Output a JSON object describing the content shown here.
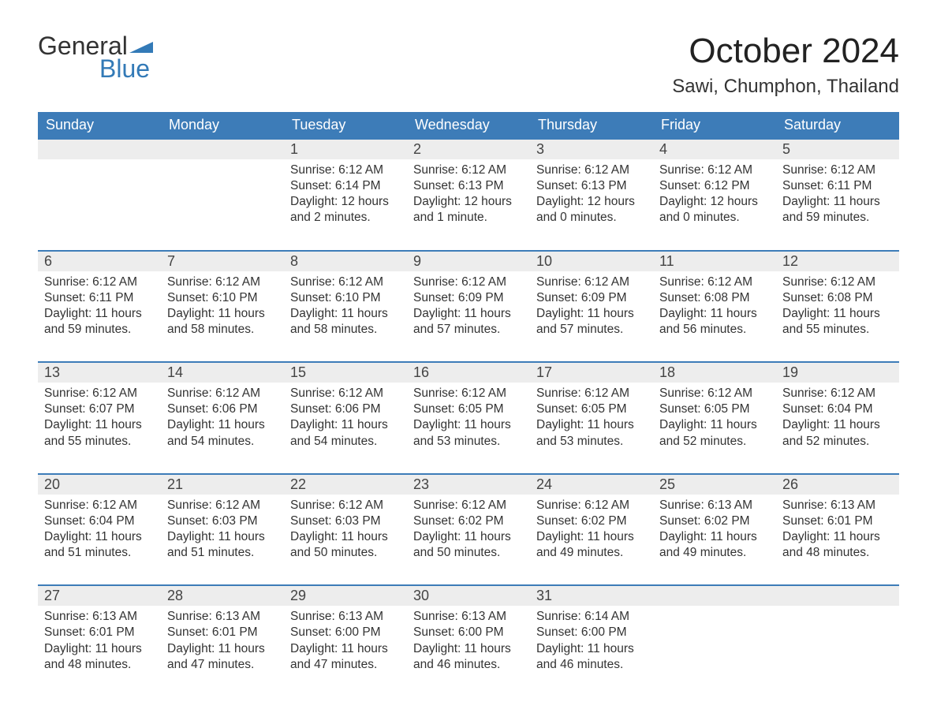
{
  "logo": {
    "word1": "General",
    "word2": "Blue",
    "accent_color": "#337ab7",
    "text_color": "#333333"
  },
  "header": {
    "title": "October 2024",
    "location": "Sawi, Chumphon, Thailand"
  },
  "calendar": {
    "header_bg": "#3d7cb8",
    "header_fg": "#ffffff",
    "daynum_bg": "#ededed",
    "row_border": "#3d7cb8",
    "body_fontsize": 15.5,
    "daynum_fontsize": 18,
    "header_fontsize": 18,
    "columns": [
      "Sunday",
      "Monday",
      "Tuesday",
      "Wednesday",
      "Thursday",
      "Friday",
      "Saturday"
    ],
    "weeks": [
      [
        null,
        null,
        {
          "n": "1",
          "sunrise": "6:12 AM",
          "sunset": "6:14 PM",
          "daylight": "12 hours and 2 minutes."
        },
        {
          "n": "2",
          "sunrise": "6:12 AM",
          "sunset": "6:13 PM",
          "daylight": "12 hours and 1 minute."
        },
        {
          "n": "3",
          "sunrise": "6:12 AM",
          "sunset": "6:13 PM",
          "daylight": "12 hours and 0 minutes."
        },
        {
          "n": "4",
          "sunrise": "6:12 AM",
          "sunset": "6:12 PM",
          "daylight": "12 hours and 0 minutes."
        },
        {
          "n": "5",
          "sunrise": "6:12 AM",
          "sunset": "6:11 PM",
          "daylight": "11 hours and 59 minutes."
        }
      ],
      [
        {
          "n": "6",
          "sunrise": "6:12 AM",
          "sunset": "6:11 PM",
          "daylight": "11 hours and 59 minutes."
        },
        {
          "n": "7",
          "sunrise": "6:12 AM",
          "sunset": "6:10 PM",
          "daylight": "11 hours and 58 minutes."
        },
        {
          "n": "8",
          "sunrise": "6:12 AM",
          "sunset": "6:10 PM",
          "daylight": "11 hours and 58 minutes."
        },
        {
          "n": "9",
          "sunrise": "6:12 AM",
          "sunset": "6:09 PM",
          "daylight": "11 hours and 57 minutes."
        },
        {
          "n": "10",
          "sunrise": "6:12 AM",
          "sunset": "6:09 PM",
          "daylight": "11 hours and 57 minutes."
        },
        {
          "n": "11",
          "sunrise": "6:12 AM",
          "sunset": "6:08 PM",
          "daylight": "11 hours and 56 minutes."
        },
        {
          "n": "12",
          "sunrise": "6:12 AM",
          "sunset": "6:08 PM",
          "daylight": "11 hours and 55 minutes."
        }
      ],
      [
        {
          "n": "13",
          "sunrise": "6:12 AM",
          "sunset": "6:07 PM",
          "daylight": "11 hours and 55 minutes."
        },
        {
          "n": "14",
          "sunrise": "6:12 AM",
          "sunset": "6:06 PM",
          "daylight": "11 hours and 54 minutes."
        },
        {
          "n": "15",
          "sunrise": "6:12 AM",
          "sunset": "6:06 PM",
          "daylight": "11 hours and 54 minutes."
        },
        {
          "n": "16",
          "sunrise": "6:12 AM",
          "sunset": "6:05 PM",
          "daylight": "11 hours and 53 minutes."
        },
        {
          "n": "17",
          "sunrise": "6:12 AM",
          "sunset": "6:05 PM",
          "daylight": "11 hours and 53 minutes."
        },
        {
          "n": "18",
          "sunrise": "6:12 AM",
          "sunset": "6:05 PM",
          "daylight": "11 hours and 52 minutes."
        },
        {
          "n": "19",
          "sunrise": "6:12 AM",
          "sunset": "6:04 PM",
          "daylight": "11 hours and 52 minutes."
        }
      ],
      [
        {
          "n": "20",
          "sunrise": "6:12 AM",
          "sunset": "6:04 PM",
          "daylight": "11 hours and 51 minutes."
        },
        {
          "n": "21",
          "sunrise": "6:12 AM",
          "sunset": "6:03 PM",
          "daylight": "11 hours and 51 minutes."
        },
        {
          "n": "22",
          "sunrise": "6:12 AM",
          "sunset": "6:03 PM",
          "daylight": "11 hours and 50 minutes."
        },
        {
          "n": "23",
          "sunrise": "6:12 AM",
          "sunset": "6:02 PM",
          "daylight": "11 hours and 50 minutes."
        },
        {
          "n": "24",
          "sunrise": "6:12 AM",
          "sunset": "6:02 PM",
          "daylight": "11 hours and 49 minutes."
        },
        {
          "n": "25",
          "sunrise": "6:13 AM",
          "sunset": "6:02 PM",
          "daylight": "11 hours and 49 minutes."
        },
        {
          "n": "26",
          "sunrise": "6:13 AM",
          "sunset": "6:01 PM",
          "daylight": "11 hours and 48 minutes."
        }
      ],
      [
        {
          "n": "27",
          "sunrise": "6:13 AM",
          "sunset": "6:01 PM",
          "daylight": "11 hours and 48 minutes."
        },
        {
          "n": "28",
          "sunrise": "6:13 AM",
          "sunset": "6:01 PM",
          "daylight": "11 hours and 47 minutes."
        },
        {
          "n": "29",
          "sunrise": "6:13 AM",
          "sunset": "6:00 PM",
          "daylight": "11 hours and 47 minutes."
        },
        {
          "n": "30",
          "sunrise": "6:13 AM",
          "sunset": "6:00 PM",
          "daylight": "11 hours and 46 minutes."
        },
        {
          "n": "31",
          "sunrise": "6:14 AM",
          "sunset": "6:00 PM",
          "daylight": "11 hours and 46 minutes."
        },
        null,
        null
      ]
    ],
    "labels": {
      "sunrise": "Sunrise:",
      "sunset": "Sunset:",
      "daylight": "Daylight:"
    }
  }
}
